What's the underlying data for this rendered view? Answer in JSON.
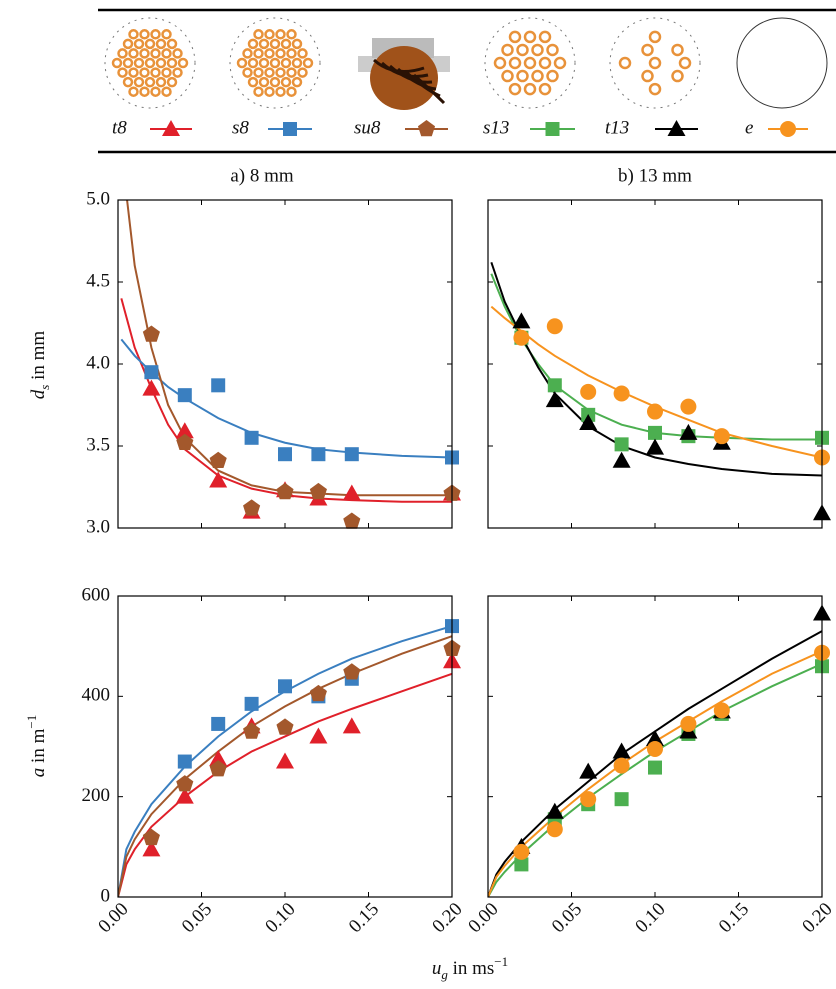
{
  "xlabel": [
    "u",
    "g",
    " in ms",
    "−1"
  ],
  "chart_data": [
    {
      "type": "scatter_fit",
      "title": "a) 8 mm",
      "ylabel": [
        "d",
        "s",
        " in mm"
      ],
      "xlim": [
        0,
        0.2
      ],
      "ylim": [
        3,
        5
      ],
      "xticks": [
        0,
        0.05,
        0.1,
        0.15,
        0.2
      ],
      "yticks": [
        {
          "value": 3,
          "label": "3.0"
        },
        {
          "value": 3.5,
          "label": "3.5"
        },
        {
          "value": 4,
          "label": "4.0"
        },
        {
          "value": 4.5,
          "label": "4.5"
        },
        {
          "value": 5,
          "label": "5.0"
        }
      ],
      "xtick_labels": false,
      "ytick_labels": true,
      "fit_x": [
        0.002,
        0.01,
        0.02,
        0.03,
        0.04,
        0.06,
        0.08,
        0.1,
        0.12,
        0.14,
        0.17,
        0.2
      ],
      "series": [
        {
          "name": "t8",
          "color": "#e0202a",
          "marker": "triangle",
          "x": [
            0.02,
            0.04,
            0.06,
            0.08,
            0.1,
            0.12,
            0.14,
            0.2
          ],
          "values": [
            3.85,
            3.59,
            3.29,
            3.1,
            3.23,
            3.18,
            3.21,
            3.21
          ],
          "fit": [
            4.4,
            4.1,
            3.85,
            3.63,
            3.48,
            3.32,
            3.24,
            3.2,
            3.18,
            3.17,
            3.16,
            3.16
          ]
        },
        {
          "name": "s8",
          "color": "#3a7fc0",
          "marker": "square",
          "x": [
            0.02,
            0.04,
            0.06,
            0.08,
            0.1,
            0.12,
            0.14,
            0.2
          ],
          "values": [
            3.95,
            3.81,
            3.87,
            3.55,
            3.45,
            3.45,
            3.45,
            3.43
          ],
          "fit": [
            4.15,
            4.05,
            3.95,
            3.86,
            3.79,
            3.67,
            3.58,
            3.52,
            3.48,
            3.46,
            3.44,
            3.43
          ]
        },
        {
          "name": "su8",
          "color": "#a3582c",
          "marker": "pentagon",
          "x": [
            0.02,
            0.04,
            0.06,
            0.08,
            0.1,
            0.12,
            0.14,
            0.2
          ],
          "values": [
            4.18,
            3.52,
            3.41,
            3.12,
            3.22,
            3.22,
            3.04,
            3.21
          ],
          "fit": [
            5.3,
            4.6,
            4.1,
            3.75,
            3.55,
            3.35,
            3.26,
            3.22,
            3.21,
            3.2,
            3.2,
            3.2
          ]
        }
      ]
    },
    {
      "type": "scatter_fit",
      "title": "b) 13 mm",
      "xlim": [
        0,
        0.2
      ],
      "ylim": [
        3,
        5
      ],
      "xticks": [
        0,
        0.05,
        0.1,
        0.15,
        0.2
      ],
      "yticks": [
        3,
        3.5,
        4,
        4.5,
        5
      ],
      "xtick_labels": false,
      "ytick_labels": false,
      "fit_x": [
        0.002,
        0.01,
        0.02,
        0.03,
        0.04,
        0.06,
        0.08,
        0.1,
        0.12,
        0.14,
        0.17,
        0.2
      ],
      "series": [
        {
          "name": "s13",
          "color": "#4caf50",
          "marker": "square",
          "x": [
            0.02,
            0.04,
            0.06,
            0.08,
            0.1,
            0.12,
            0.2
          ],
          "values": [
            4.16,
            3.87,
            3.69,
            3.51,
            3.58,
            3.56,
            3.55
          ],
          "fit": [
            4.55,
            4.35,
            4.15,
            4.0,
            3.87,
            3.72,
            3.63,
            3.58,
            3.56,
            3.55,
            3.54,
            3.54
          ]
        },
        {
          "name": "t13",
          "color": "#000000",
          "marker": "triangle",
          "x": [
            0.02,
            0.04,
            0.06,
            0.08,
            0.1,
            0.12,
            0.14,
            0.2
          ],
          "values": [
            4.26,
            3.78,
            3.64,
            3.41,
            3.49,
            3.58,
            3.52,
            3.09
          ],
          "fit": [
            4.62,
            4.38,
            4.17,
            3.98,
            3.82,
            3.62,
            3.5,
            3.43,
            3.39,
            3.36,
            3.33,
            3.32
          ]
        },
        {
          "name": "e",
          "color": "#f7931e",
          "marker": "circle",
          "x": [
            0.02,
            0.04,
            0.06,
            0.08,
            0.1,
            0.12,
            0.14,
            0.2
          ],
          "values": [
            4.16,
            4.23,
            3.83,
            3.82,
            3.71,
            3.74,
            3.56,
            3.43
          ],
          "fit": [
            4.35,
            4.28,
            4.2,
            4.12,
            4.05,
            3.93,
            3.83,
            3.74,
            3.66,
            3.58,
            3.5,
            3.43
          ]
        }
      ]
    },
    {
      "type": "scatter_fit",
      "ylabel": [
        "a",
        " in m",
        "−1"
      ],
      "xlim": [
        0,
        0.2
      ],
      "ylim": [
        0,
        600
      ],
      "xticks": [
        {
          "value": 0,
          "label": "0.00"
        },
        {
          "value": 0.05,
          "label": "0.05"
        },
        {
          "value": 0.1,
          "label": "0.10"
        },
        {
          "value": 0.15,
          "label": "0.15"
        },
        {
          "value": 0.2,
          "label": "0.20"
        }
      ],
      "yticks": [
        0,
        200,
        400,
        600
      ],
      "xtick_labels": true,
      "ytick_labels": true,
      "fit_x": [
        0,
        0.005,
        0.01,
        0.02,
        0.04,
        0.06,
        0.08,
        0.1,
        0.12,
        0.14,
        0.17,
        0.2
      ],
      "series": [
        {
          "color": "#e0202a",
          "marker": "triangle",
          "x": [
            0.02,
            0.04,
            0.06,
            0.08,
            0.1,
            0.12,
            0.14,
            0.2
          ],
          "values": [
            95,
            200,
            275,
            340,
            270,
            320,
            340,
            470
          ],
          "fit": [
            0,
            65,
            95,
            140,
            200,
            250,
            290,
            320,
            350,
            375,
            410,
            445
          ]
        },
        {
          "color": "#3a7fc0",
          "marker": "square",
          "x": [
            0.04,
            0.06,
            0.08,
            0.1,
            0.12,
            0.14,
            0.2
          ],
          "values": [
            270,
            345,
            385,
            420,
            400,
            435,
            540
          ],
          "fit": [
            0,
            95,
            130,
            185,
            260,
            320,
            370,
            410,
            445,
            475,
            510,
            540
          ]
        },
        {
          "color": "#a3582c",
          "marker": "pentagon",
          "x": [
            0.02,
            0.04,
            0.06,
            0.08,
            0.1,
            0.12,
            0.14,
            0.2
          ],
          "values": [
            118,
            225,
            255,
            330,
            338,
            405,
            448,
            495
          ],
          "fit": [
            0,
            80,
            115,
            165,
            235,
            290,
            340,
            380,
            415,
            445,
            485,
            520
          ]
        }
      ]
    },
    {
      "type": "scatter_fit",
      "xlim": [
        0,
        0.2
      ],
      "ylim": [
        0,
        600
      ],
      "xticks": [
        {
          "value": 0,
          "label": "0.00"
        },
        {
          "value": 0.05,
          "label": "0.05"
        },
        {
          "value": 0.1,
          "label": "0.10"
        },
        {
          "value": 0.15,
          "label": "0.15"
        },
        {
          "value": 0.2,
          "label": "0.20"
        }
      ],
      "yticks": [
        0,
        200,
        400,
        600
      ],
      "xtick_labels": true,
      "ytick_labels": false,
      "fit_x": [
        0,
        0.005,
        0.01,
        0.02,
        0.04,
        0.06,
        0.08,
        0.1,
        0.12,
        0.14,
        0.17,
        0.2
      ],
      "series": [
        {
          "color": "#4caf50",
          "marker": "square",
          "x": [
            0.02,
            0.04,
            0.06,
            0.08,
            0.1,
            0.12,
            0.14,
            0.2
          ],
          "values": [
            65,
            155,
            185,
            195,
            258,
            325,
            365,
            460
          ],
          "fit": [
            0,
            30,
            50,
            85,
            145,
            198,
            245,
            290,
            330,
            370,
            420,
            465
          ]
        },
        {
          "color": "#000000",
          "marker": "triangle",
          "x": [
            0.02,
            0.04,
            0.06,
            0.08,
            0.1,
            0.12,
            0.14,
            0.2
          ],
          "values": [
            100,
            170,
            250,
            290,
            315,
            330,
            370,
            565
          ],
          "fit": [
            0,
            45,
            70,
            110,
            175,
            230,
            285,
            330,
            375,
            415,
            475,
            530
          ]
        },
        {
          "color": "#f7931e",
          "marker": "circle",
          "x": [
            0.02,
            0.04,
            0.06,
            0.08,
            0.1,
            0.12,
            0.14,
            0.2
          ],
          "values": [
            90,
            135,
            195,
            262,
            295,
            345,
            372,
            487
          ],
          "fit": [
            0,
            40,
            62,
            100,
            160,
            215,
            265,
            310,
            350,
            390,
            445,
            490
          ]
        }
      ]
    }
  ]
}
